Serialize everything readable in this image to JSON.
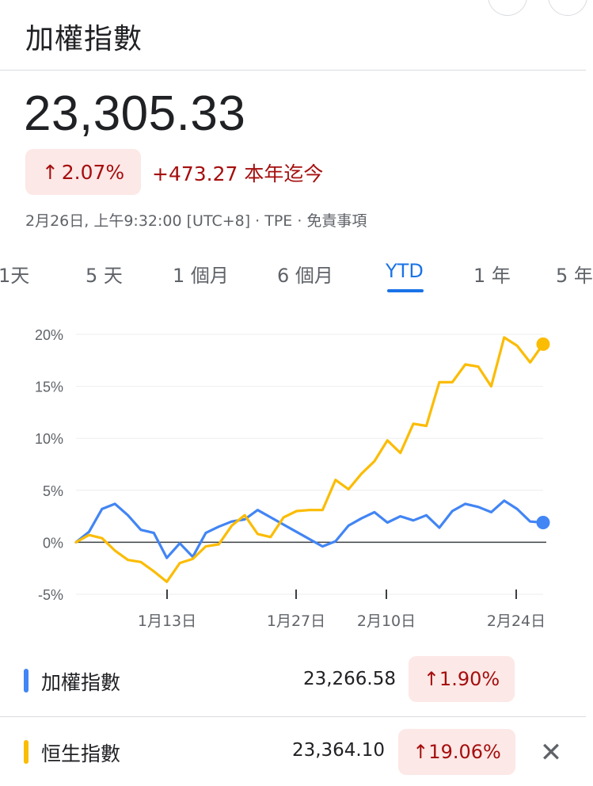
{
  "header": {
    "title": "加權指數"
  },
  "quote": {
    "price": "23,305.33",
    "change_pct": "2.07%",
    "change_abs": "+473.27",
    "period_label": "本年迄今",
    "meta": "2月26日, 上午9:32:00 [UTC+8] · TPE · 免責事項",
    "up_arrow": "↑"
  },
  "tabs": [
    {
      "label": "1天"
    },
    {
      "label": "5 天"
    },
    {
      "label": "1 個月"
    },
    {
      "label": "6 個月"
    },
    {
      "label": "YTD",
      "active": true
    },
    {
      "label": "1 年"
    },
    {
      "label": "5 年"
    }
  ],
  "chart_data": {
    "type": "line",
    "x_tick_labels": [
      "1月13日",
      "1月27日",
      "2月10日",
      "2月24日"
    ],
    "y_tick_labels": [
      "20%",
      "15%",
      "10%",
      "5%",
      "0%",
      "-5%"
    ],
    "ylim": [
      -5,
      20
    ],
    "grid": true,
    "series": [
      {
        "name": "加權指數",
        "color": "#4285f4",
        "values": [
          0,
          1.0,
          3.2,
          3.7,
          2.6,
          1.2,
          0.9,
          -1.5,
          -0.1,
          -1.4,
          0.9,
          1.5,
          2.0,
          2.2,
          3.1,
          2.4,
          1.7,
          1.0,
          0.3,
          -0.4,
          0.1,
          1.6,
          2.3,
          2.9,
          1.9,
          2.5,
          2.1,
          2.6,
          1.4,
          3.0,
          3.7,
          3.4,
          2.9,
          4.0,
          3.2,
          2.0,
          1.9
        ]
      },
      {
        "name": "恒生指數",
        "color": "#fbbc04",
        "values": [
          0,
          0.7,
          0.4,
          -0.8,
          -1.7,
          -1.9,
          -2.8,
          -3.8,
          -2.0,
          -1.6,
          -0.4,
          -0.2,
          1.6,
          2.6,
          0.8,
          0.5,
          2.4,
          3.0,
          3.1,
          3.1,
          6.0,
          5.1,
          6.6,
          7.8,
          9.8,
          8.6,
          11.4,
          11.2,
          15.4,
          15.4,
          17.1,
          16.9,
          15.0,
          19.7,
          18.9,
          17.3,
          19.06
        ]
      }
    ]
  },
  "legend": [
    {
      "name": "加權指數",
      "value": "23,266.58",
      "pct": "1.90%",
      "color": "#4285f4"
    },
    {
      "name": "恒生指數",
      "value": "23,364.10",
      "pct": "19.06%",
      "color": "#fbbc04"
    }
  ],
  "close_symbol": "✕"
}
